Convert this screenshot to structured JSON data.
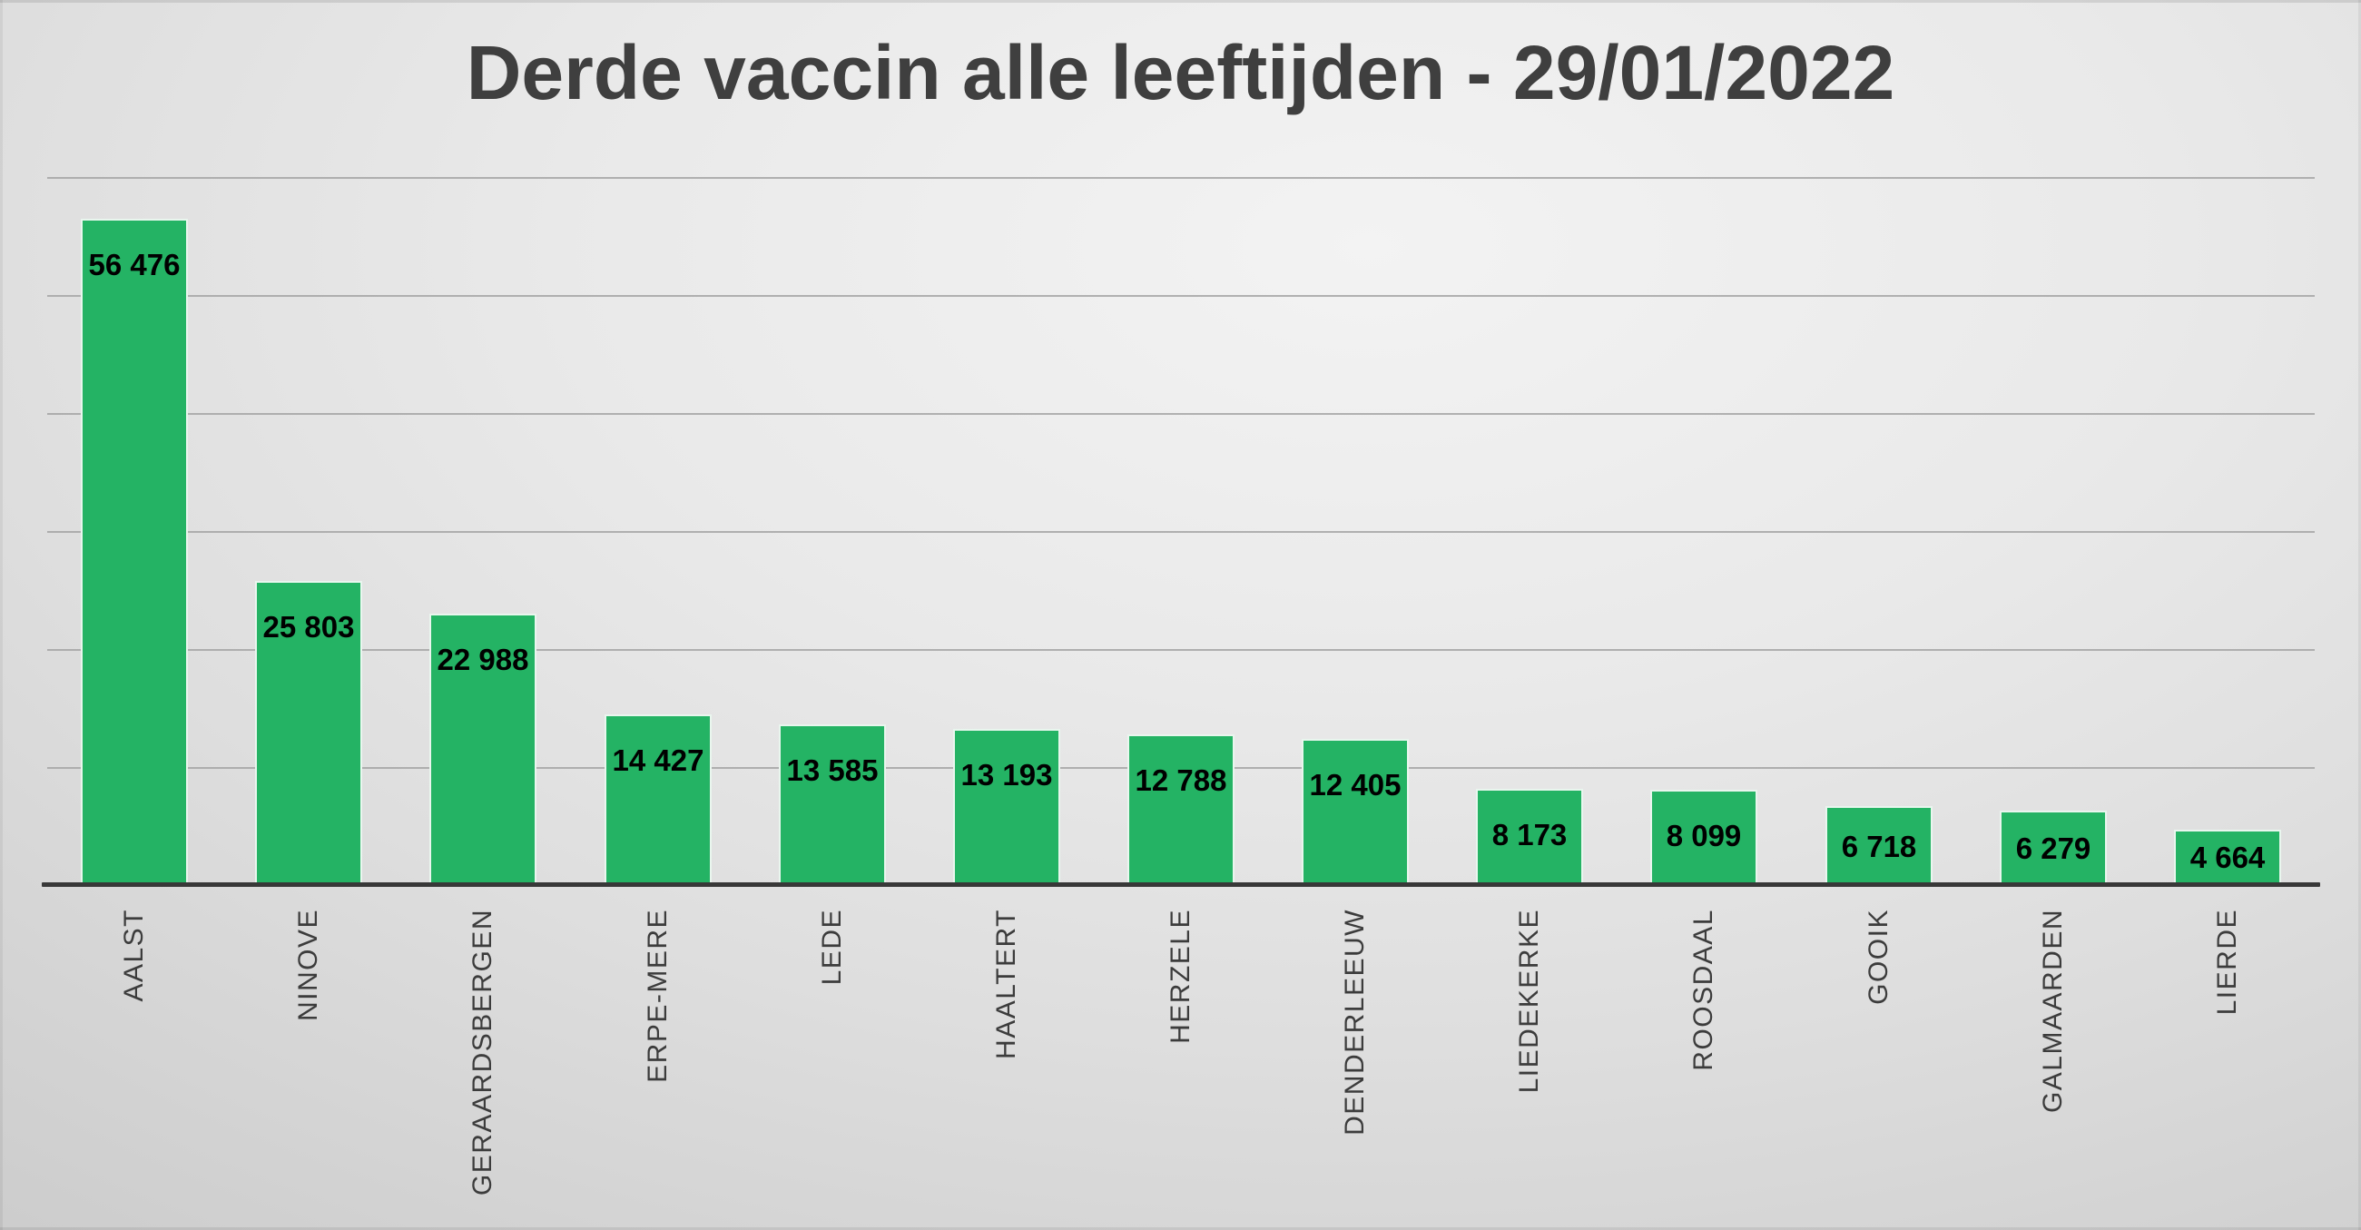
{
  "chart_data": {
    "type": "bar",
    "title": "Derde vaccin alle leeftijden - 29/01/2022",
    "categories": [
      "AALST",
      "NINOVE",
      "GERAARDSBERGEN",
      "ERPE-MERE",
      "LEDE",
      "HAALTERT",
      "HERZELE",
      "DENDERLEEUW",
      "LIEDEKERKE",
      "ROOSDAAL",
      "GOOIK",
      "GALMAARDEN",
      "LIERDE"
    ],
    "values": [
      56476,
      25803,
      22988,
      14427,
      13585,
      13193,
      12788,
      12405,
      8173,
      8099,
      6718,
      6279,
      4664
    ],
    "value_labels": [
      "56 476",
      "25 803",
      "22 988",
      "14 427",
      "13 585",
      "13 193",
      "12 788",
      "12 405",
      "8 173",
      "8 099",
      "6 718",
      "6 279",
      "4 664"
    ],
    "value_label_position": "inside-end",
    "category_label_rotation": "rotate-up-90",
    "xlabel": "",
    "ylabel": "",
    "ylim": [
      0,
      60000
    ],
    "gridline_step": 10000,
    "grid": true,
    "legend": false,
    "y_tick_labels_visible": false,
    "colors": {
      "bar_fill": "#24b364",
      "bar_border": "#e9f6ee",
      "gridline": "#a4a4a4",
      "axis_line": "#383838",
      "title_text": "#3f3f3f",
      "category_text": "#3c3c3c",
      "value_text": "#000000",
      "background_light": "#f3f3f3",
      "background_dark": "#c2c2c2"
    }
  }
}
